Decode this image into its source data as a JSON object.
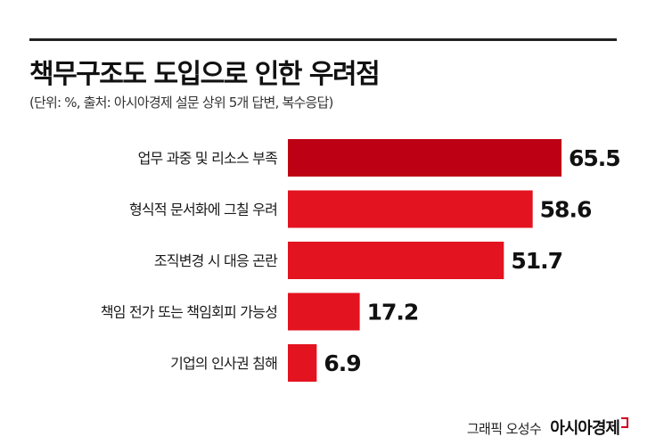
{
  "title": "책무구조도 도입으로 인한 우려점",
  "subtitle": "(단위: %, 출처: 아시아경제 설문 상위 5개 답변, 복수응답)",
  "footer": {
    "credit": "그래픽 오성수",
    "brand": "아시아경제"
  },
  "colors": {
    "top_bar": "#bd0014",
    "bar": "#e3131f",
    "text": "#1a1a1a"
  },
  "chart_data": {
    "type": "bar",
    "orientation": "horizontal",
    "title": "책무구조도 도입으로 인한 우려점",
    "unit": "%",
    "categories": [
      "업무 과중 및 리소스 부족",
      "형식적 문서화에 그칠 우려",
      "조직변경 시 대응 곤란",
      "책임 전가 또는 책임회피 가능성",
      "기업의 인사권 침해"
    ],
    "values": [
      65.5,
      58.6,
      51.7,
      17.2,
      6.9
    ],
    "data_labels": [
      "65.5",
      "58.6",
      "51.7",
      "17.2",
      "6.9"
    ],
    "xlim": [
      0,
      65.5
    ],
    "grid": false,
    "legend": "none"
  }
}
